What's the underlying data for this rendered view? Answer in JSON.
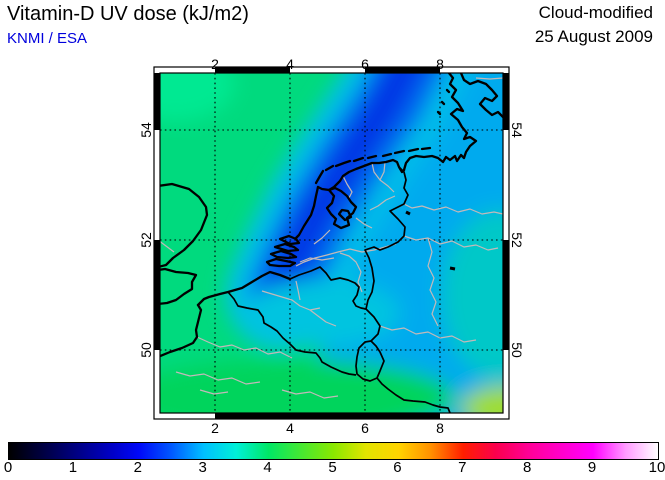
{
  "header": {
    "title": "Vitamin-D UV dose (kJ/m2)",
    "credit": "KNMI / ESA",
    "credit_color": "#0000dd",
    "right_line1": "Cloud-modified",
    "right_line2": "25 August 2009"
  },
  "map": {
    "lon_ticks": [
      "2",
      "4",
      "6",
      "8"
    ],
    "lat_ticks_left": [
      "54",
      "52",
      "50"
    ],
    "lat_ticks_right": [
      "54",
      "52",
      "50"
    ],
    "region": "Netherlands / Benelux / NW Germany / SE England",
    "grid_style": "dotted black graticule every 2 degrees",
    "field_regions": [
      {
        "area": "northwest North Sea and UK east coast",
        "approx_dose_kJ_m2": "3.5-4"
      },
      {
        "area": "diagonal cloud band Zeeland delta to Wadden Sea",
        "approx_dose_kJ_m2": "1.5-2"
      },
      {
        "area": "eastern Netherlands and NW Germany",
        "approx_dose_kJ_m2": "2-2.5"
      },
      {
        "area": "Belgium and central area",
        "approx_dose_kJ_m2": "3"
      },
      {
        "area": "northern France along southern edge",
        "approx_dose_kJ_m2": "3.5-4"
      },
      {
        "area": "southeast corner Rhine valley",
        "approx_dose_kJ_m2": "4.5-5"
      }
    ]
  },
  "colorbar": {
    "min": 0,
    "max": 10,
    "labels": [
      "0",
      "1",
      "2",
      "3",
      "4",
      "5",
      "6",
      "7",
      "8",
      "9",
      "10"
    ],
    "stops": [
      {
        "value": 0.0,
        "color": "#000000"
      },
      {
        "value": 1.0,
        "color": "#00007e"
      },
      {
        "value": 1.6,
        "color": "#0000c8"
      },
      {
        "value": 2.0,
        "color": "#0008f8"
      },
      {
        "value": 2.5,
        "color": "#0058ff"
      },
      {
        "value": 3.0,
        "color": "#00c0ff"
      },
      {
        "value": 3.5,
        "color": "#00f0d8"
      },
      {
        "value": 4.0,
        "color": "#00e766"
      },
      {
        "value": 4.5,
        "color": "#46e832"
      },
      {
        "value": 5.0,
        "color": "#8ae800"
      },
      {
        "value": 5.5,
        "color": "#e2e400"
      },
      {
        "value": 6.0,
        "color": "#ffd400"
      },
      {
        "value": 6.5,
        "color": "#ff9000"
      },
      {
        "value": 7.0,
        "color": "#ff1e00"
      },
      {
        "value": 7.5,
        "color": "#fb004d"
      },
      {
        "value": 8.0,
        "color": "#ff0095"
      },
      {
        "value": 9.0,
        "color": "#ff00ff"
      },
      {
        "value": 9.5,
        "color": "#ff9bff"
      },
      {
        "value": 10.0,
        "color": "#ffffff"
      }
    ]
  }
}
